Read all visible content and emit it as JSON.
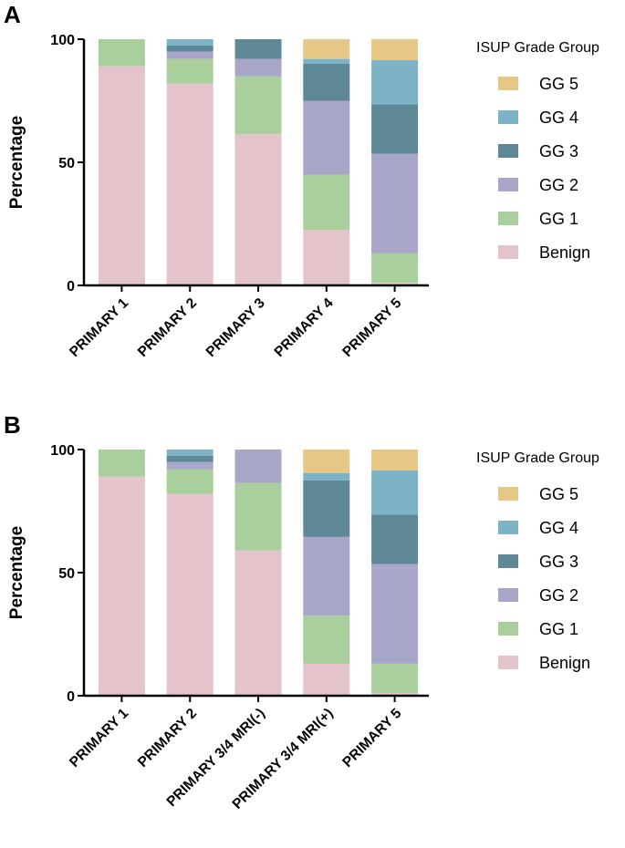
{
  "panels": [
    {
      "label": "A"
    },
    {
      "label": "B"
    }
  ],
  "chart_data": [
    {
      "type": "bar",
      "stacked": true,
      "panel_label": "A",
      "title": "",
      "xlabel": "",
      "ylabel": "Percentage",
      "ylim": [
        0,
        100
      ],
      "yticks": [
        0,
        50,
        100
      ],
      "legend_title": "ISUP Grade Group",
      "legend_position": "right",
      "grid": false,
      "categories": [
        "PRIMARY 1",
        "PRIMARY 2",
        "PRIMARY 3",
        "PRIMARY 4",
        "PRIMARY 5"
      ],
      "series": [
        {
          "name": "Benign",
          "color": "#e5c3cb",
          "values": [
            89,
            82,
            61.5,
            22.5,
            1
          ]
        },
        {
          "name": "GG 1",
          "color": "#a9cf9c",
          "values": [
            11,
            10,
            23.5,
            22.5,
            12
          ]
        },
        {
          "name": "GG 2",
          "color": "#a8a6c9",
          "values": [
            0,
            3,
            7,
            30,
            40.5
          ]
        },
        {
          "name": "GG 3",
          "color": "#5f8897",
          "values": [
            0,
            2.5,
            8,
            15,
            20
          ]
        },
        {
          "name": "GG 4",
          "color": "#7db3c7",
          "values": [
            0,
            2.5,
            0,
            2,
            18
          ]
        },
        {
          "name": "GG 5",
          "color": "#e6c786",
          "values": [
            0,
            0,
            0,
            8,
            8.5
          ]
        }
      ]
    },
    {
      "type": "bar",
      "stacked": true,
      "panel_label": "B",
      "title": "",
      "xlabel": "",
      "ylabel": "Percentage",
      "ylim": [
        0,
        100
      ],
      "yticks": [
        0,
        50,
        100
      ],
      "legend_title": "ISUP Grade Group",
      "legend_position": "right",
      "grid": false,
      "categories": [
        "PRIMARY 1",
        "PRIMARY 2",
        "PRIMARY 3/4 MRI(-)",
        "PRIMARY 3/4 MRI(+)",
        "PRIMARY 5"
      ],
      "series": [
        {
          "name": "Benign",
          "color": "#e5c3cb",
          "values": [
            89,
            82,
            59,
            13,
            1
          ]
        },
        {
          "name": "GG 1",
          "color": "#a9cf9c",
          "values": [
            11,
            10,
            27.5,
            19.5,
            12
          ]
        },
        {
          "name": "GG 2",
          "color": "#a8a6c9",
          "values": [
            0,
            3,
            13.5,
            32,
            40.5
          ]
        },
        {
          "name": "GG 3",
          "color": "#5f8897",
          "values": [
            0,
            2.5,
            0,
            23,
            20
          ]
        },
        {
          "name": "GG 4",
          "color": "#7db3c7",
          "values": [
            0,
            2.5,
            0,
            3,
            18
          ]
        },
        {
          "name": "GG 5",
          "color": "#e6c786",
          "values": [
            0,
            0,
            0,
            9.5,
            8.5
          ]
        }
      ]
    }
  ]
}
